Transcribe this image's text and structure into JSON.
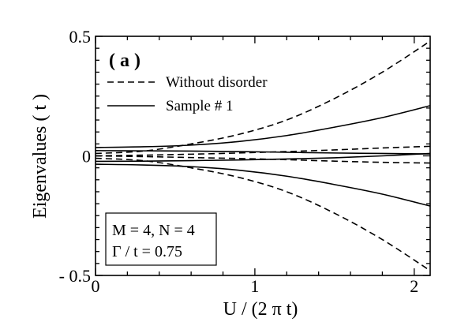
{
  "chart_data": {
    "type": "line",
    "panel_label": "( a )",
    "xlabel": "U / (2 π t)",
    "ylabel": "Eigenvalues ( t )",
    "xlim": [
      0,
      2.1
    ],
    "ylim": [
      -0.5,
      0.5
    ],
    "x_ticks": [
      {
        "value": 0,
        "label": "0"
      },
      {
        "value": 1,
        "label": "1"
      },
      {
        "value": 2,
        "label": "2"
      }
    ],
    "y_ticks": [
      {
        "value": 0.5,
        "label": "0.5"
      },
      {
        "value": 0,
        "label": "0"
      },
      {
        "value": -0.5,
        "label": "- 0.5"
      }
    ],
    "grid": false,
    "legend": {
      "placement": "top-left",
      "entries": [
        {
          "label": "Without disorder",
          "style": "dashed"
        },
        {
          "label": "Sample # 1",
          "style": "solid"
        }
      ]
    },
    "annotation": {
      "placement": "bottom-left",
      "lines": [
        "M = 4, N = 4",
        "Γ / t = 0.75"
      ]
    },
    "x": [
      0,
      0.3,
      0.6,
      0.9,
      1.2,
      1.5,
      1.8,
      2.1
    ],
    "series": [
      {
        "style": "dashed",
        "values": [
          0.01,
          0.02,
          0.05,
          0.09,
          0.15,
          0.24,
          0.35,
          0.48
        ]
      },
      {
        "style": "dashed",
        "values": [
          0.0,
          0.003,
          0.007,
          0.012,
          0.018,
          0.025,
          0.033,
          0.04
        ]
      },
      {
        "style": "dashed",
        "values": [
          0.0,
          -0.003,
          -0.007,
          -0.011,
          -0.016,
          -0.022,
          -0.027,
          -0.03
        ]
      },
      {
        "style": "dashed",
        "values": [
          -0.01,
          -0.02,
          -0.05,
          -0.09,
          -0.15,
          -0.24,
          -0.35,
          -0.48
        ]
      },
      {
        "style": "solid",
        "values": [
          0.035,
          0.038,
          0.045,
          0.06,
          0.085,
          0.12,
          0.16,
          0.21
        ]
      },
      {
        "style": "solid",
        "values": [
          0.022,
          0.021,
          0.02,
          0.018,
          0.015,
          0.012,
          0.01,
          0.008
        ]
      },
      {
        "style": "solid",
        "values": [
          -0.023,
          -0.022,
          -0.02,
          -0.017,
          -0.013,
          -0.008,
          0.0,
          0.01
        ]
      },
      {
        "style": "solid",
        "values": [
          -0.035,
          -0.038,
          -0.045,
          -0.06,
          -0.085,
          -0.12,
          -0.16,
          -0.21
        ]
      }
    ]
  }
}
